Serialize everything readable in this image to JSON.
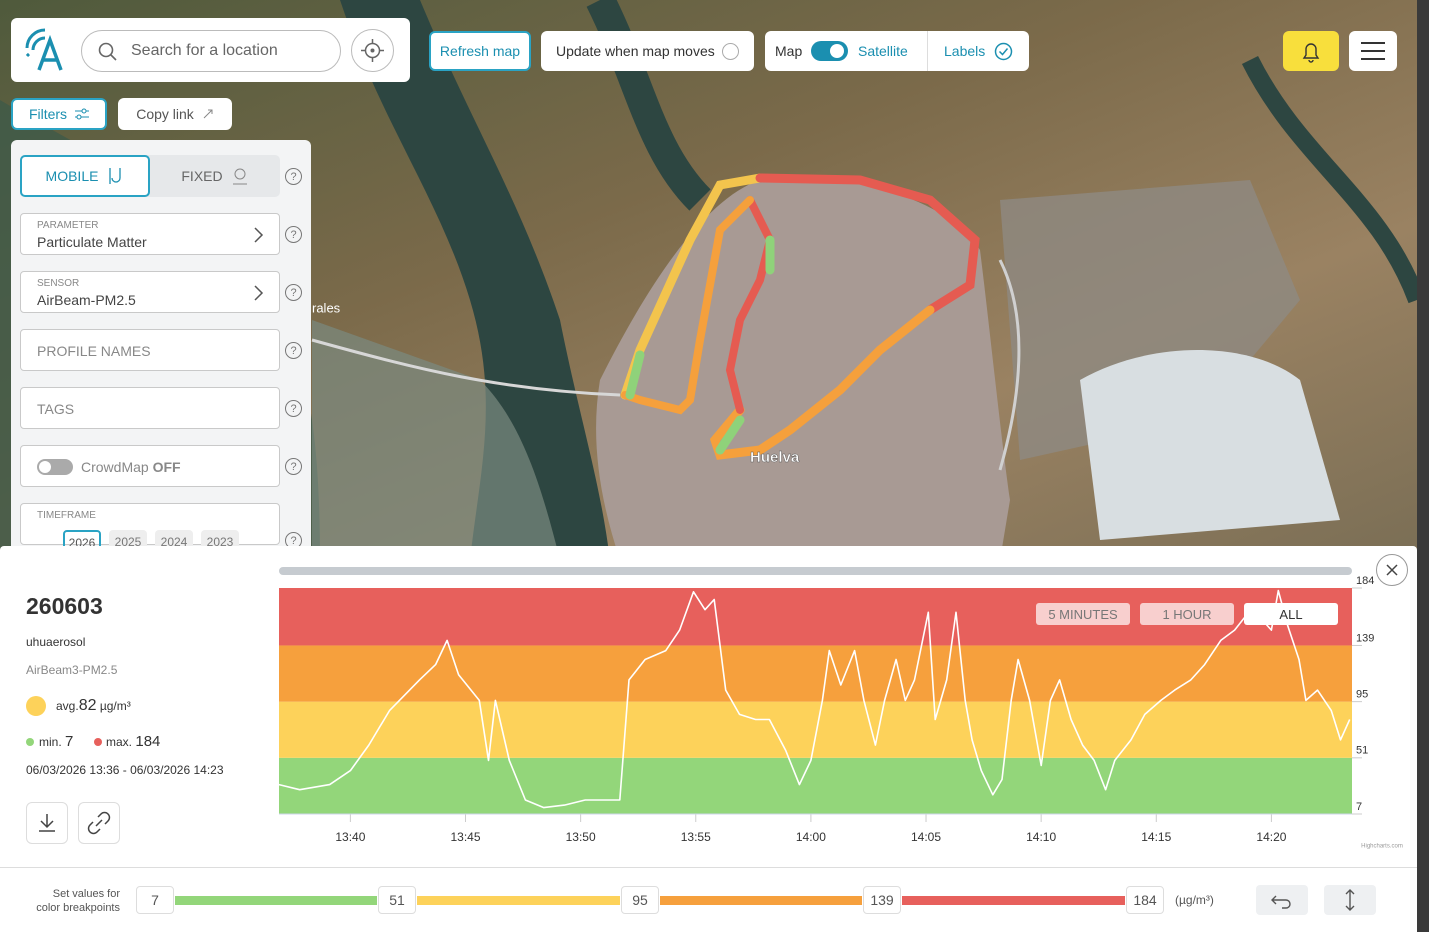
{
  "header": {
    "search_placeholder": "Search for a location",
    "refresh": "Refresh map",
    "update_when_moves": "Update when map moves",
    "map": "Map",
    "satellite": "Satellite",
    "labels": "Labels"
  },
  "filters": {
    "filters_button": "Filters",
    "copy_link": "Copy link",
    "mobile": "MOBILE",
    "fixed": "FIXED",
    "help": "?",
    "parameter_label": "PARAMETER",
    "parameter_value": "Particulate Matter",
    "sensor_label": "SENSOR",
    "sensor_value": "AirBeam-PM2.5",
    "profile_names": "PROFILE NAMES",
    "tags": "TAGS",
    "crowdmap": "CrowdMap",
    "crowdmap_state": "OFF",
    "timeframe_label": "TIMEFRAME",
    "years": [
      "2026",
      "2025",
      "2024",
      "2023"
    ]
  },
  "map_labels": [
    "rales",
    "Huelva"
  ],
  "session": {
    "id": "260603",
    "profile": "uhuaerosol",
    "sensor": "AirBeam3-PM2.5",
    "avg_label": "avg.",
    "avg_value": "82",
    "unit": "µg/m³",
    "min_label": "min.",
    "min_value": "7",
    "max_label": "max.",
    "max_value": "184",
    "time_range": "06/03/2026 13:36 - 06/03/2026 14:23"
  },
  "chart_data": {
    "type": "line",
    "range_buttons": [
      "5 MINUTES",
      "1 HOUR",
      "ALL"
    ],
    "credit": "Highcharts.com",
    "line_color": "#ffffff",
    "band_colors": [
      "#93d67a",
      "#fdd25a",
      "#f6a03d",
      "#e7605c"
    ],
    "x": [
      36.9,
      37.8,
      39.1,
      40.0,
      40.8,
      41.7,
      43.0,
      43.7,
      44.2,
      44.7,
      45.6,
      46.0,
      46.3,
      46.9,
      47.6,
      48.4,
      49.3,
      50.2,
      51.7,
      52.1,
      52.8,
      53.7,
      54.3,
      54.9,
      55.4,
      55.8,
      56.3,
      56.9,
      57.6,
      58.2,
      58.9,
      59.5,
      60.0,
      60.5,
      60.8,
      61.3,
      61.9,
      62.3,
      62.8,
      63.2,
      63.7,
      64.1,
      64.5,
      65.1,
      65.4,
      65.9,
      66.3,
      66.7,
      67.0,
      67.4,
      67.9,
      68.3,
      68.7,
      69.0,
      69.5,
      70.0,
      70.4,
      70.8,
      71.3,
      71.8,
      72.3,
      72.8,
      73.2,
      73.9,
      74.5,
      75.2,
      75.8,
      76.5,
      77.1,
      77.8,
      78.4,
      79.1,
      79.6,
      80.0,
      80.3,
      80.7,
      81.2,
      81.5,
      82.0,
      82.6,
      83.0,
      83.4
    ],
    "values": [
      30,
      26,
      30,
      41,
      61,
      88,
      112,
      124,
      143,
      116,
      96,
      49,
      96,
      49,
      18,
      12,
      14,
      18,
      18,
      112,
      128,
      135,
      151,
      181,
      167,
      175,
      104,
      85,
      81,
      81,
      57,
      30,
      49,
      96,
      135,
      108,
      135,
      96,
      61,
      96,
      128,
      96,
      112,
      165,
      81,
      112,
      165,
      96,
      65,
      41,
      22,
      34,
      96,
      128,
      96,
      45,
      96,
      112,
      81,
      61,
      49,
      26,
      49,
      65,
      85,
      96,
      104,
      112,
      124,
      143,
      151,
      167,
      159,
      151,
      182,
      155,
      128,
      96,
      104,
      88,
      65,
      81
    ],
    "xlim": [
      36.9,
      83.5
    ],
    "xticks": [
      {
        "value": 40,
        "label": "13:40"
      },
      {
        "value": 45,
        "label": "13:45"
      },
      {
        "value": 50,
        "label": "13:50"
      },
      {
        "value": 55,
        "label": "13:55"
      },
      {
        "value": 60,
        "label": "14:00"
      },
      {
        "value": 65,
        "label": "14:05"
      },
      {
        "value": 70,
        "label": "14:10"
      },
      {
        "value": 75,
        "label": "14:15"
      },
      {
        "value": 80,
        "label": "14:20"
      }
    ],
    "ylim": [
      7,
      184
    ],
    "yticks": [
      7,
      51,
      95,
      139,
      184
    ]
  },
  "breakpoints": {
    "label_line1": "Set values for",
    "label_line2": "color breakpoints",
    "values": [
      "7",
      "51",
      "95",
      "139",
      "184"
    ],
    "unit": "(µg/m³)"
  }
}
